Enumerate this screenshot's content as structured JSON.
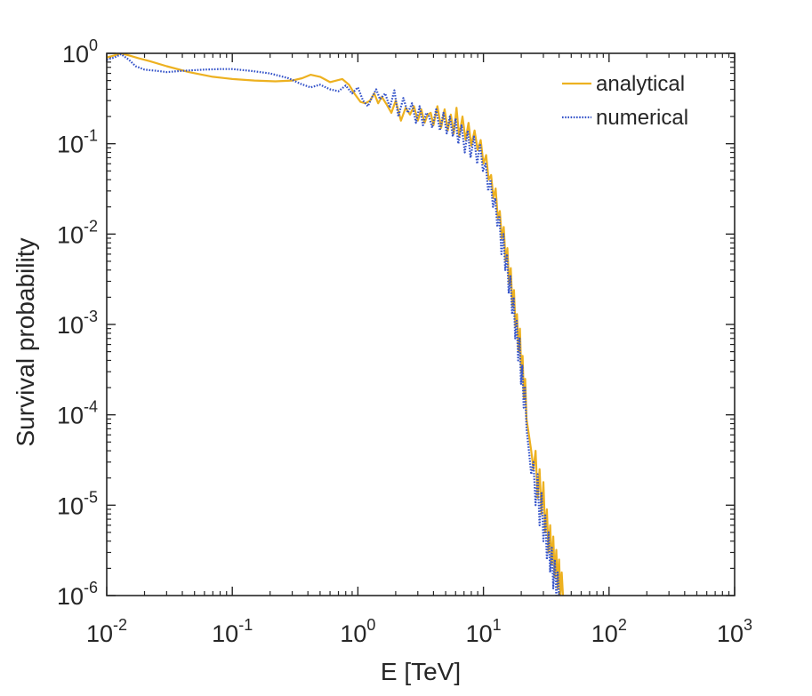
{
  "chart_data": {
    "type": "line",
    "title": "",
    "xlabel": "E [TeV]",
    "ylabel": "Survival probability",
    "xscale": "log",
    "yscale": "log",
    "xlim": [
      0.01,
      1000
    ],
    "ylim": [
      1e-06,
      1
    ],
    "x_ticks": [
      {
        "value": 0.01,
        "base": "10",
        "exp": "-2"
      },
      {
        "value": 0.1,
        "base": "10",
        "exp": "-1"
      },
      {
        "value": 1,
        "base": "10",
        "exp": "0"
      },
      {
        "value": 10,
        "base": "10",
        "exp": "1"
      },
      {
        "value": 100,
        "base": "10",
        "exp": "2"
      },
      {
        "value": 1000,
        "base": "10",
        "exp": "3"
      }
    ],
    "y_ticks": [
      {
        "value": 1,
        "base": "10",
        "exp": "0"
      },
      {
        "value": 0.1,
        "base": "10",
        "exp": "-1"
      },
      {
        "value": 0.01,
        "base": "10",
        "exp": "-2"
      },
      {
        "value": 0.001,
        "base": "10",
        "exp": "-3"
      },
      {
        "value": 0.0001,
        "base": "10",
        "exp": "-4"
      },
      {
        "value": 1e-05,
        "base": "10",
        "exp": "-5"
      },
      {
        "value": 1e-06,
        "base": "10",
        "exp": "-6"
      }
    ],
    "grid": false,
    "legend_position": "top-right",
    "series": [
      {
        "name": "analytical",
        "color": "#EDB120",
        "style": "solid",
        "x": [
          0.01,
          0.0115,
          0.013,
          0.015,
          0.018,
          0.022,
          0.03,
          0.045,
          0.07,
          0.1,
          0.15,
          0.22,
          0.3,
          0.36,
          0.42,
          0.5,
          0.6,
          0.75,
          0.85,
          0.95,
          1.05,
          1.15,
          1.25,
          1.35,
          1.45,
          1.55,
          1.7,
          1.85,
          2.0,
          2.2,
          2.4,
          2.6,
          2.8,
          3.0,
          3.2,
          3.4,
          3.6,
          3.8,
          4.0,
          4.3,
          4.6,
          4.9,
          5.2,
          5.5,
          5.8,
          6.1,
          6.4,
          6.8,
          7.2,
          7.6,
          8.0,
          8.5,
          9.0,
          9.5,
          10.0,
          10.5,
          11.0,
          11.5,
          12.0,
          12.5,
          13.0,
          13.5,
          14.0,
          14.5,
          15.0,
          15.5,
          16.0,
          16.5,
          17.0,
          17.5,
          18.0,
          18.5,
          19.0,
          19.5,
          20.0,
          20.5,
          21.0,
          21.5,
          22.0,
          23.0,
          24.0,
          25.0,
          26.0,
          27.0,
          28.0,
          29.0,
          30.0,
          31.0,
          32.0,
          33.0,
          34.0,
          35.0,
          36.0,
          37.0,
          38.0,
          39.0,
          40.0,
          41.0,
          42.0,
          43.0
        ],
        "y": [
          0.9,
          0.95,
          1.0,
          0.95,
          0.88,
          0.82,
          0.72,
          0.62,
          0.55,
          0.52,
          0.5,
          0.49,
          0.5,
          0.53,
          0.58,
          0.55,
          0.48,
          0.52,
          0.45,
          0.35,
          0.29,
          0.28,
          0.3,
          0.36,
          0.28,
          0.33,
          0.27,
          0.22,
          0.3,
          0.18,
          0.25,
          0.21,
          0.26,
          0.18,
          0.24,
          0.17,
          0.21,
          0.22,
          0.16,
          0.26,
          0.15,
          0.24,
          0.14,
          0.21,
          0.13,
          0.25,
          0.12,
          0.2,
          0.11,
          0.17,
          0.095,
          0.14,
          0.085,
          0.11,
          0.06,
          0.075,
          0.04,
          0.045,
          0.025,
          0.032,
          0.015,
          0.018,
          0.009,
          0.012,
          0.005,
          0.007,
          0.0028,
          0.0042,
          0.0016,
          0.0024,
          0.00095,
          0.0013,
          0.0005,
          0.0009,
          0.0003,
          0.00045,
          0.00015,
          0.00025,
          9e-05,
          6e-05,
          4e-05,
          2.5e-05,
          4e-05,
          1.2e-05,
          2.5e-05,
          8e-06,
          1.8e-05,
          5e-06,
          9e-06,
          3e-06,
          6e-06,
          2.2e-06,
          4.5e-06,
          1.6e-06,
          3.2e-06,
          1.2e-06,
          2.5e-06,
          1e-06,
          1.8e-06,
          1e-06
        ]
      },
      {
        "name": "numerical",
        "color": "#3352C9",
        "style": "dotted",
        "x": [
          0.01,
          0.0115,
          0.013,
          0.015,
          0.017,
          0.02,
          0.025,
          0.03,
          0.04,
          0.06,
          0.08,
          0.1,
          0.14,
          0.2,
          0.28,
          0.35,
          0.42,
          0.5,
          0.6,
          0.7,
          0.8,
          0.9,
          1.0,
          1.1,
          1.2,
          1.3,
          1.4,
          1.5,
          1.65,
          1.8,
          1.95,
          2.1,
          2.3,
          2.5,
          2.7,
          2.9,
          3.1,
          3.3,
          3.5,
          3.7,
          3.9,
          4.2,
          4.5,
          4.8,
          5.1,
          5.4,
          5.7,
          6.0,
          6.3,
          6.7,
          7.1,
          7.5,
          7.9,
          8.4,
          8.9,
          9.4,
          9.9,
          10.4,
          10.9,
          11.4,
          11.9,
          12.4,
          12.9,
          13.4,
          13.9,
          14.4,
          14.9,
          15.4,
          15.9,
          16.4,
          16.9,
          17.4,
          17.9,
          18.4,
          18.9,
          19.4,
          19.9,
          20.4,
          20.9,
          21.4,
          22.0,
          23.0,
          24.0,
          25.0,
          26.0,
          27.0,
          28.0,
          29.0,
          30.0,
          31.0,
          32.0,
          33.0,
          34.0,
          35.0,
          36.0,
          37.0,
          38.0,
          39.0,
          40.0,
          41.0
        ],
        "y": [
          0.85,
          0.9,
          0.98,
          0.85,
          0.72,
          0.66,
          0.64,
          0.62,
          0.64,
          0.66,
          0.67,
          0.67,
          0.64,
          0.6,
          0.53,
          0.46,
          0.42,
          0.45,
          0.4,
          0.38,
          0.44,
          0.36,
          0.42,
          0.3,
          0.26,
          0.33,
          0.4,
          0.31,
          0.36,
          0.25,
          0.39,
          0.2,
          0.32,
          0.22,
          0.28,
          0.17,
          0.26,
          0.16,
          0.22,
          0.2,
          0.15,
          0.24,
          0.14,
          0.22,
          0.13,
          0.2,
          0.12,
          0.19,
          0.1,
          0.16,
          0.08,
          0.14,
          0.07,
          0.12,
          0.06,
          0.1,
          0.05,
          0.06,
          0.03,
          0.04,
          0.02,
          0.025,
          0.012,
          0.016,
          0.006,
          0.01,
          0.004,
          0.006,
          0.0022,
          0.0035,
          0.0013,
          0.002,
          0.0007,
          0.0011,
          0.0004,
          0.0007,
          0.00022,
          0.00035,
          0.00012,
          0.0002,
          7e-05,
          4e-05,
          2.2e-05,
          3e-05,
          1e-05,
          2.2e-05,
          6e-06,
          1.4e-05,
          4e-06,
          8e-06,
          2.5e-06,
          5e-06,
          1.8e-06,
          3.5e-06,
          1.2e-06,
          2.5e-06,
          1e-06,
          1.8e-06,
          1e-06,
          1e-06
        ]
      }
    ]
  }
}
